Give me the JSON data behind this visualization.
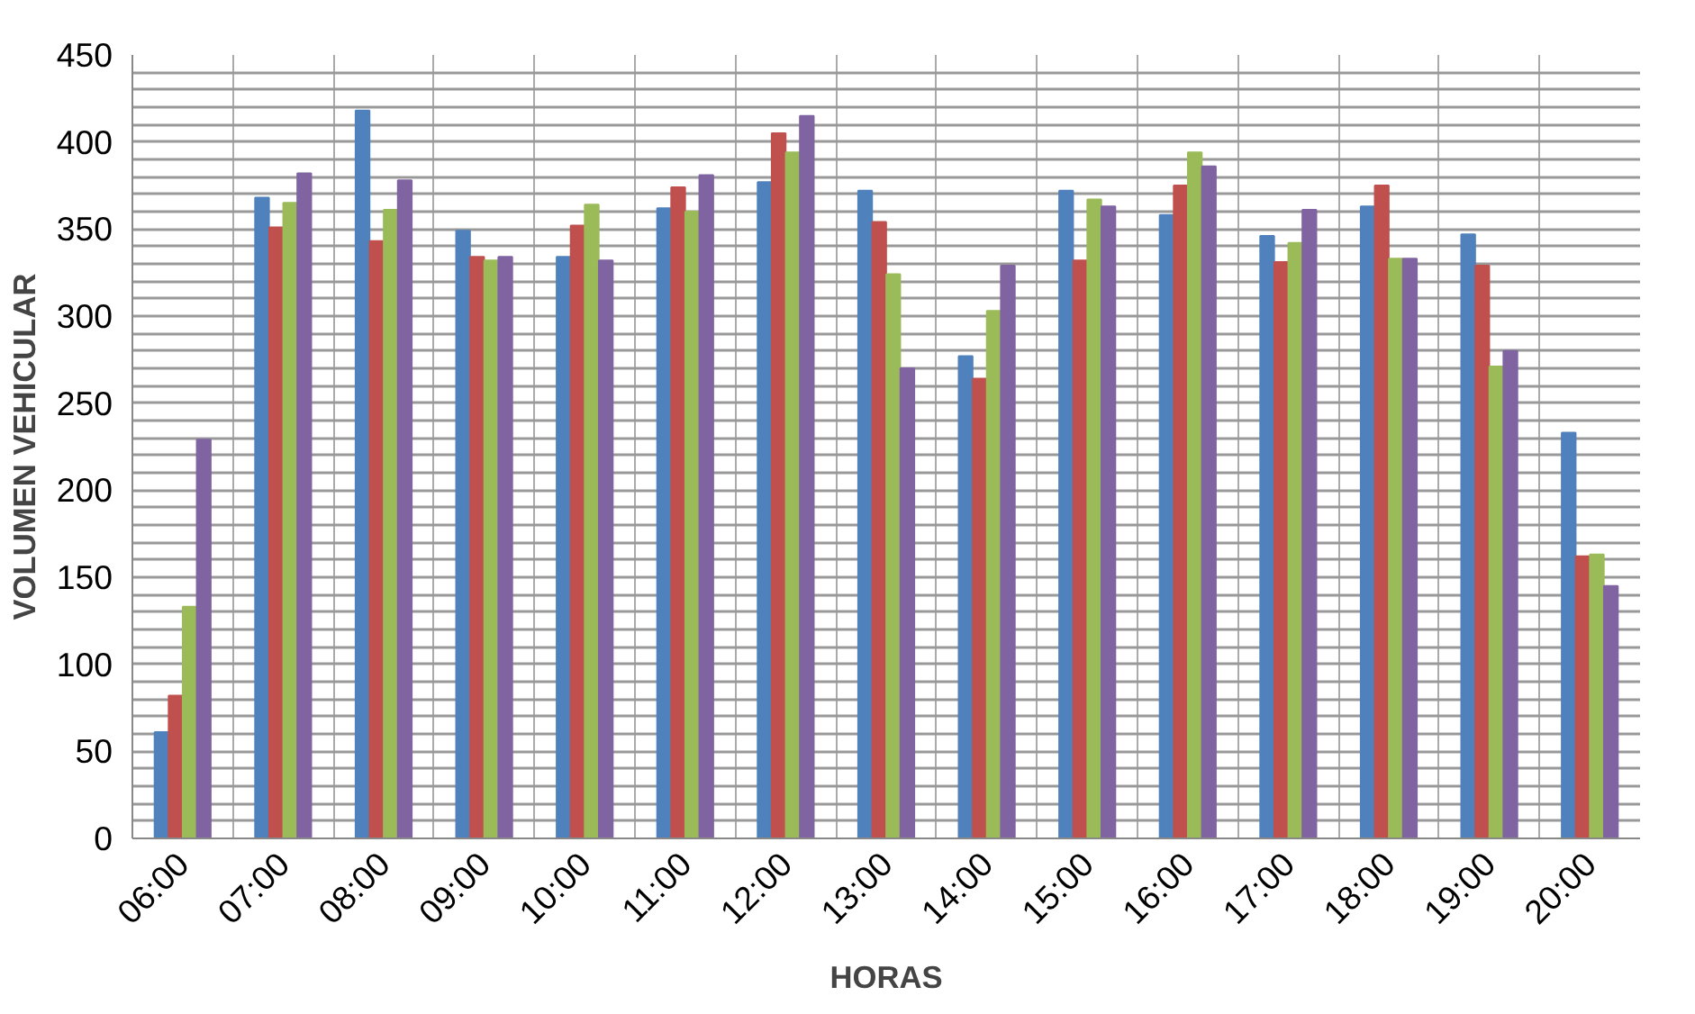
{
  "chart_data": {
    "type": "bar",
    "xlabel": "HORAS",
    "ylabel": "VOLUMEN VEHICULAR",
    "categories": [
      "06:00",
      "07:00",
      "08:00",
      "09:00",
      "10:00",
      "11:00",
      "12:00",
      "13:00",
      "14:00",
      "15:00",
      "16:00",
      "17:00",
      "18:00",
      "19:00",
      "20:00"
    ],
    "series": [
      {
        "color": "#4f81bd",
        "values": [
          61,
          368,
          418,
          349,
          334,
          362,
          377,
          372,
          277,
          372,
          358,
          346,
          363,
          347,
          233
        ]
      },
      {
        "color": "#c0504d",
        "values": [
          82,
          351,
          343,
          334,
          352,
          374,
          405,
          354,
          264,
          332,
          375,
          331,
          375,
          329,
          162
        ]
      },
      {
        "color": "#9bbb59",
        "values": [
          133,
          365,
          361,
          332,
          364,
          360,
          394,
          324,
          303,
          367,
          394,
          342,
          333,
          271,
          163
        ]
      },
      {
        "color": "#8064a2",
        "values": [
          229,
          382,
          378,
          334,
          332,
          381,
          415,
          270,
          329,
          363,
          386,
          361,
          333,
          280,
          145
        ]
      }
    ],
    "ylim": [
      0,
      450
    ],
    "yticks": [
      0,
      {
        "value": 10,
        "label": null
      },
      {
        "value": 20,
        "label": null
      },
      {
        "value": 30,
        "label": null
      },
      {
        "value": 40,
        "label": null
      },
      50,
      {
        "value": 60,
        "label": null
      },
      {
        "value": 70,
        "label": null
      },
      {
        "value": 80,
        "label": null
      },
      {
        "value": 90,
        "label": null
      },
      100,
      {
        "value": 110,
        "label": null
      },
      {
        "value": 120,
        "label": null
      },
      {
        "value": 130,
        "label": null
      },
      {
        "value": 140,
        "label": null
      },
      150,
      {
        "value": 160,
        "label": null
      },
      {
        "value": 170,
        "label": null
      },
      {
        "value": 180,
        "label": null
      },
      {
        "value": 190,
        "label": null
      },
      200,
      {
        "value": 210,
        "label": null
      },
      {
        "value": 220,
        "label": null
      },
      {
        "value": 230,
        "label": null
      },
      {
        "value": 240,
        "label": null
      },
      250,
      {
        "value": 260,
        "label": null
      },
      {
        "value": 270,
        "label": null
      },
      {
        "value": 280,
        "label": null
      },
      {
        "value": 290,
        "label": null
      },
      300,
      {
        "value": 310,
        "label": null
      },
      {
        "value": 320,
        "label": null
      },
      {
        "value": 330,
        "label": null
      },
      {
        "value": 340,
        "label": null
      },
      350,
      {
        "value": 360,
        "label": null
      },
      {
        "value": 370,
        "label": null
      },
      {
        "value": 380,
        "label": null
      },
      {
        "value": 390,
        "label": null
      },
      400,
      {
        "value": 410,
        "label": null
      },
      {
        "value": 420,
        "label": null
      },
      {
        "value": 430,
        "label": null
      },
      {
        "value": 440,
        "label": null
      },
      450
    ],
    "grid": true
  }
}
